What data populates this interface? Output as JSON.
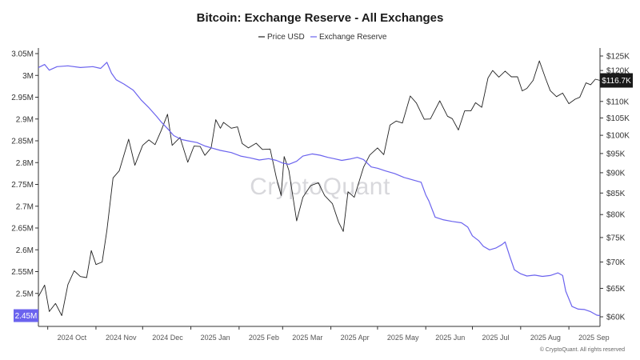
{
  "chart_data": {
    "type": "line",
    "title": "Bitcoin: Exchange Reserve - All Exchanges",
    "legend": {
      "placement": "top-center",
      "entries": [
        {
          "name": "Price USD",
          "color": "#222222"
        },
        {
          "name": "Exchange Reserve",
          "color": "#6b63ee"
        }
      ]
    },
    "x_axis": {
      "tick_labels": [
        "2024 Oct",
        "2024 Nov",
        "2024 Dec",
        "2025 Jan",
        "2025 Feb",
        "2025 Mar",
        "2025 Apr",
        "2025 May",
        "2025 Jun",
        "2025 Jul",
        "2025 Aug",
        "2025 Sep"
      ],
      "range": [
        "2024-09-25",
        "2025-09-21"
      ]
    },
    "left_axis": {
      "series": "Exchange Reserve",
      "ylim": [
        2.43,
        3.05
      ],
      "tick_values": [
        2.45,
        2.5,
        2.55,
        2.6,
        2.65,
        2.7,
        2.75,
        2.8,
        2.85,
        2.9,
        2.95,
        3.0,
        3.05
      ],
      "tick_labels": [
        "2.45M",
        "2.5M",
        "2.55M",
        "2.6M",
        "2.65M",
        "2.7M",
        "2.75M",
        "2.8M",
        "2.85M",
        "2.9M",
        "2.95M",
        "3M",
        "3.05M"
      ],
      "current_label": "2.45M",
      "current_value": 2.449
    },
    "right_axis": {
      "series": "Price USD",
      "scale": "log",
      "ylim": [
        58500,
        128000
      ],
      "tick_values": [
        60000,
        65000,
        70000,
        75000,
        80000,
        85000,
        90000,
        95000,
        100000,
        105000,
        110000,
        115000,
        120000,
        125000
      ],
      "tick_labels": [
        "$60K",
        "$65K",
        "$70K",
        "$75K",
        "$80K",
        "$85K",
        "$90K",
        "$95K",
        "$100K",
        "$105K",
        "$110K",
        "$115K",
        "$120K",
        "$125K"
      ],
      "current_label": "$116.7K",
      "current_value": 116700
    },
    "grid": false,
    "watermark": "CryptoQuant",
    "credit": "© CryptoQuant. All rights reserved",
    "series": [
      {
        "name": "Price USD",
        "color": "#222222",
        "axis": "right",
        "points": [
          [
            "2024-09-25",
            63500
          ],
          [
            "2024-09-29",
            65600
          ],
          [
            "2024-10-02",
            60900
          ],
          [
            "2024-10-06",
            62300
          ],
          [
            "2024-10-10",
            60200
          ],
          [
            "2024-10-14",
            65700
          ],
          [
            "2024-10-18",
            68300
          ],
          [
            "2024-10-22",
            67200
          ],
          [
            "2024-10-26",
            67000
          ],
          [
            "2024-10-29",
            72300
          ],
          [
            "2024-11-01",
            69500
          ],
          [
            "2024-11-05",
            70000
          ],
          [
            "2024-11-08",
            76500
          ],
          [
            "2024-11-12",
            88700
          ],
          [
            "2024-11-16",
            90500
          ],
          [
            "2024-11-22",
            98900
          ],
          [
            "2024-11-26",
            91900
          ],
          [
            "2024-12-01",
            97200
          ],
          [
            "2024-12-05",
            98700
          ],
          [
            "2024-12-09",
            97400
          ],
          [
            "2024-12-13",
            101400
          ],
          [
            "2024-12-17",
            106100
          ],
          [
            "2024-12-20",
            97200
          ],
          [
            "2024-12-25",
            99400
          ],
          [
            "2024-12-30",
            92700
          ],
          [
            "2025-01-03",
            97000
          ],
          [
            "2025-01-07",
            96900
          ],
          [
            "2025-01-10",
            94500
          ],
          [
            "2025-01-14",
            96500
          ],
          [
            "2025-01-17",
            104500
          ],
          [
            "2025-01-20",
            102000
          ],
          [
            "2025-01-22",
            103700
          ],
          [
            "2025-01-27",
            102000
          ],
          [
            "2025-01-31",
            102400
          ],
          [
            "2025-02-03",
            97700
          ],
          [
            "2025-02-07",
            96500
          ],
          [
            "2025-02-12",
            97800
          ],
          [
            "2025-02-16",
            96100
          ],
          [
            "2025-02-21",
            96200
          ],
          [
            "2025-02-25",
            88700
          ],
          [
            "2025-02-28",
            84400
          ],
          [
            "2025-03-02",
            94200
          ],
          [
            "2025-03-05",
            90600
          ],
          [
            "2025-03-10",
            78600
          ],
          [
            "2025-03-14",
            84000
          ],
          [
            "2025-03-19",
            86800
          ],
          [
            "2025-03-24",
            87500
          ],
          [
            "2025-03-28",
            84400
          ],
          [
            "2025-04-02",
            82500
          ],
          [
            "2025-04-06",
            78300
          ],
          [
            "2025-04-09",
            76300
          ],
          [
            "2025-04-12",
            85300
          ],
          [
            "2025-04-16",
            84000
          ],
          [
            "2025-04-22",
            91400
          ],
          [
            "2025-04-26",
            94600
          ],
          [
            "2025-05-01",
            96500
          ],
          [
            "2025-05-05",
            94700
          ],
          [
            "2025-05-09",
            102900
          ],
          [
            "2025-05-13",
            104100
          ],
          [
            "2025-05-17",
            103500
          ],
          [
            "2025-05-22",
            111700
          ],
          [
            "2025-05-26",
            109500
          ],
          [
            "2025-05-31",
            104600
          ],
          [
            "2025-06-04",
            104700
          ],
          [
            "2025-06-10",
            110200
          ],
          [
            "2025-06-15",
            105500
          ],
          [
            "2025-06-18",
            104800
          ],
          [
            "2025-06-22",
            101500
          ],
          [
            "2025-06-26",
            107100
          ],
          [
            "2025-06-30",
            107100
          ],
          [
            "2025-07-03",
            109600
          ],
          [
            "2025-07-07",
            108200
          ],
          [
            "2025-07-11",
            117500
          ],
          [
            "2025-07-14",
            120000
          ],
          [
            "2025-07-18",
            117800
          ],
          [
            "2025-07-22",
            119800
          ],
          [
            "2025-07-26",
            117900
          ],
          [
            "2025-07-30",
            117900
          ],
          [
            "2025-08-02",
            113300
          ],
          [
            "2025-08-05",
            114100
          ],
          [
            "2025-08-09",
            116700
          ],
          [
            "2025-08-13",
            123300
          ],
          [
            "2025-08-17",
            117400
          ],
          [
            "2025-08-20",
            113400
          ],
          [
            "2025-08-24",
            111500
          ],
          [
            "2025-08-28",
            112600
          ],
          [
            "2025-09-01",
            109300
          ],
          [
            "2025-09-05",
            110700
          ],
          [
            "2025-09-08",
            111300
          ],
          [
            "2025-09-12",
            115900
          ],
          [
            "2025-09-15",
            115300
          ],
          [
            "2025-09-18",
            117100
          ],
          [
            "2025-09-21",
            116700
          ]
        ]
      },
      {
        "name": "Exchange Reserve",
        "color": "#6b63ee",
        "axis": "left",
        "points": [
          [
            "2024-09-25",
            3.018
          ],
          [
            "2024-09-29",
            3.025
          ],
          [
            "2024-10-02",
            3.012
          ],
          [
            "2024-10-07",
            3.02
          ],
          [
            "2024-10-14",
            3.022
          ],
          [
            "2024-10-22",
            3.018
          ],
          [
            "2024-10-30",
            3.02
          ],
          [
            "2024-11-04",
            3.016
          ],
          [
            "2024-11-08",
            3.03
          ],
          [
            "2024-11-11",
            3.005
          ],
          [
            "2024-11-14",
            2.99
          ],
          [
            "2024-11-19",
            2.98
          ],
          [
            "2024-11-25",
            2.966
          ],
          [
            "2024-11-30",
            2.944
          ],
          [
            "2024-12-05",
            2.926
          ],
          [
            "2024-12-10",
            2.906
          ],
          [
            "2024-12-13",
            2.893
          ],
          [
            "2024-12-17",
            2.878
          ],
          [
            "2024-12-21",
            2.862
          ],
          [
            "2024-12-26",
            2.853
          ],
          [
            "2024-12-30",
            2.85
          ],
          [
            "2025-01-05",
            2.846
          ],
          [
            "2025-01-10",
            2.838
          ],
          [
            "2025-01-15",
            2.833
          ],
          [
            "2025-01-20",
            2.828
          ],
          [
            "2025-01-27",
            2.823
          ],
          [
            "2025-02-02",
            2.815
          ],
          [
            "2025-02-08",
            2.811
          ],
          [
            "2025-02-14",
            2.806
          ],
          [
            "2025-02-20",
            2.809
          ],
          [
            "2025-02-25",
            2.805
          ],
          [
            "2025-03-01",
            2.799
          ],
          [
            "2025-03-05",
            2.796
          ],
          [
            "2025-03-10",
            2.803
          ],
          [
            "2025-03-14",
            2.815
          ],
          [
            "2025-03-20",
            2.82
          ],
          [
            "2025-03-25",
            2.817
          ],
          [
            "2025-03-30",
            2.812
          ],
          [
            "2025-04-03",
            2.809
          ],
          [
            "2025-04-08",
            2.805
          ],
          [
            "2025-04-13",
            2.808
          ],
          [
            "2025-04-18",
            2.812
          ],
          [
            "2025-04-22",
            2.807
          ],
          [
            "2025-04-27",
            2.79
          ],
          [
            "2025-05-01",
            2.787
          ],
          [
            "2025-05-06",
            2.781
          ],
          [
            "2025-05-12",
            2.775
          ],
          [
            "2025-05-18",
            2.766
          ],
          [
            "2025-05-24",
            2.76
          ],
          [
            "2025-05-29",
            2.755
          ],
          [
            "2025-06-01",
            2.726
          ],
          [
            "2025-06-03",
            2.712
          ],
          [
            "2025-06-07",
            2.675
          ],
          [
            "2025-06-12",
            2.669
          ],
          [
            "2025-06-18",
            2.665
          ],
          [
            "2025-06-24",
            2.662
          ],
          [
            "2025-06-28",
            2.652
          ],
          [
            "2025-07-01",
            2.632
          ],
          [
            "2025-07-05",
            2.621
          ],
          [
            "2025-07-08",
            2.608
          ],
          [
            "2025-07-12",
            2.6
          ],
          [
            "2025-07-16",
            2.604
          ],
          [
            "2025-07-20",
            2.612
          ],
          [
            "2025-07-22",
            2.618
          ],
          [
            "2025-07-25",
            2.585
          ],
          [
            "2025-07-28",
            2.554
          ],
          [
            "2025-08-01",
            2.545
          ],
          [
            "2025-08-05",
            2.54
          ],
          [
            "2025-08-10",
            2.542
          ],
          [
            "2025-08-15",
            2.539
          ],
          [
            "2025-08-20",
            2.541
          ],
          [
            "2025-08-25",
            2.547
          ],
          [
            "2025-08-28",
            2.541
          ],
          [
            "2025-08-30",
            2.505
          ],
          [
            "2025-09-03",
            2.47
          ],
          [
            "2025-09-07",
            2.464
          ],
          [
            "2025-09-11",
            2.463
          ],
          [
            "2025-09-15",
            2.458
          ],
          [
            "2025-09-19",
            2.45
          ],
          [
            "2025-09-21",
            2.449
          ]
        ]
      }
    ]
  }
}
